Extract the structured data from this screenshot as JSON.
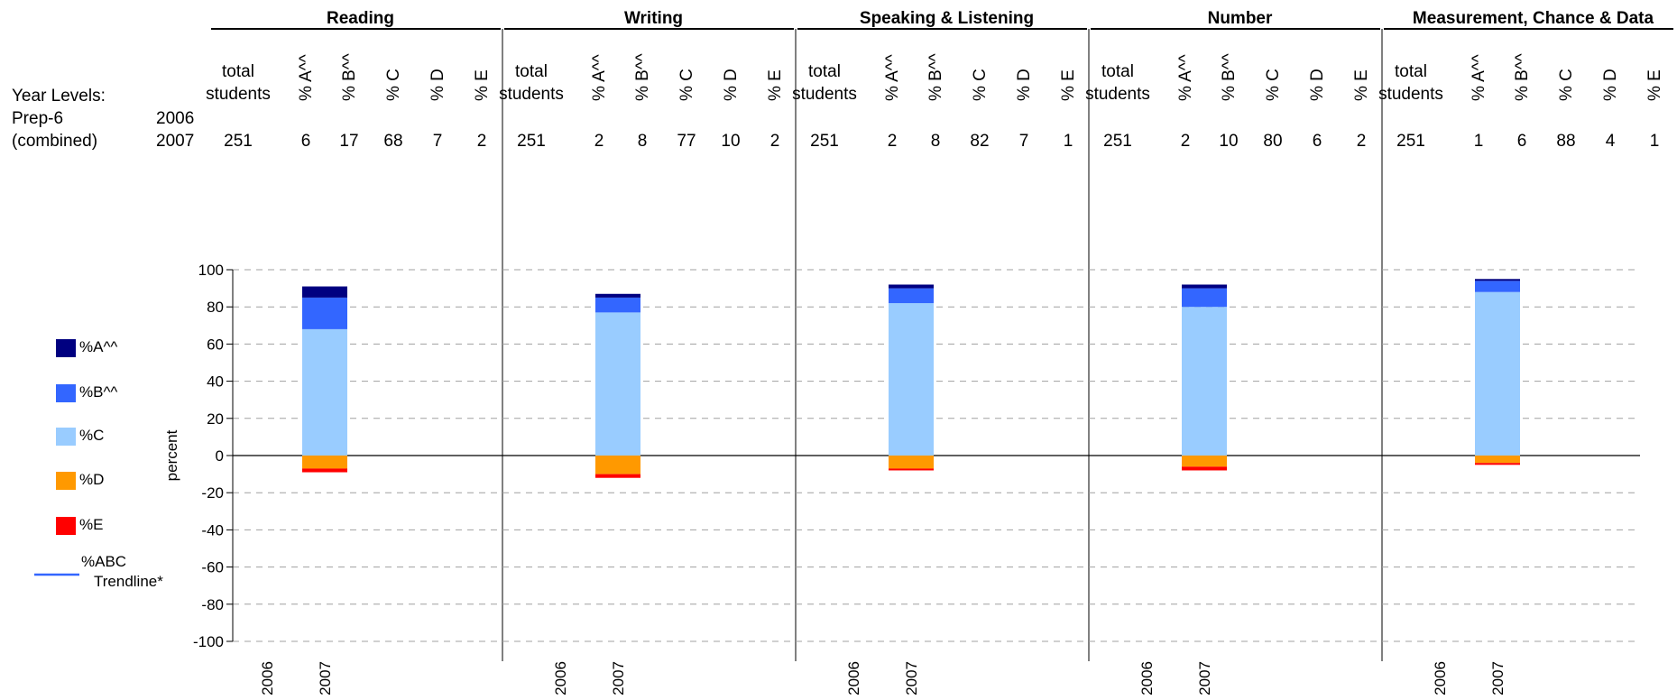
{
  "table": {
    "year_levels_label": "Year Levels:",
    "row_label_line1": "Prep-6",
    "row_label_line2": "(combined)",
    "years": [
      "2006",
      "2007"
    ],
    "columns": [
      {
        "line1": "total",
        "line2": "students"
      },
      {
        "line1": "% A^^",
        "line2": ""
      },
      {
        "line1": "% B^^",
        "line2": ""
      },
      {
        "line1": "% C",
        "line2": ""
      },
      {
        "line1": "% D",
        "line2": ""
      },
      {
        "line1": "% E",
        "line2": ""
      }
    ]
  },
  "legend": {
    "items": [
      {
        "label": "%A^^",
        "color": "#000080",
        "kind": "box"
      },
      {
        "label": "%B^^",
        "color": "#3366FF",
        "kind": "box"
      },
      {
        "label": "%C",
        "color": "#99CCFF",
        "kind": "box"
      },
      {
        "label": "%D",
        "color": "#FF9900",
        "kind": "box"
      },
      {
        "label": "%E",
        "color": "#FF0000",
        "kind": "box"
      },
      {
        "label": "%ABC",
        "label2": "Trendline*",
        "color": "#3366FF",
        "kind": "line"
      }
    ]
  },
  "chart_data": {
    "type": "bar",
    "stacked": true,
    "ylabel": "percent",
    "ylim": [
      -100,
      100
    ],
    "yticks": [
      100,
      80,
      60,
      40,
      20,
      0,
      -20,
      -40,
      -60,
      -80,
      -100
    ],
    "grid": true,
    "legend_placement": "left",
    "categories": [
      "2006",
      "2007"
    ],
    "panels": [
      {
        "title": "Reading",
        "data": [
          {
            "year": "2006",
            "total": "",
            "A": null,
            "B": null,
            "C": null,
            "D": null,
            "E": null
          },
          {
            "year": "2007",
            "total": "251",
            "A": 6,
            "B": 17,
            "C": 68,
            "D": 7,
            "E": 2
          }
        ]
      },
      {
        "title": "Writing",
        "data": [
          {
            "year": "2006",
            "total": "",
            "A": null,
            "B": null,
            "C": null,
            "D": null,
            "E": null
          },
          {
            "year": "2007",
            "total": "251",
            "A": 2,
            "B": 8,
            "C": 77,
            "D": 10,
            "E": 2
          }
        ]
      },
      {
        "title": "Speaking & Listening",
        "data": [
          {
            "year": "2006",
            "total": "",
            "A": null,
            "B": null,
            "C": null,
            "D": null,
            "E": null
          },
          {
            "year": "2007",
            "total": "251",
            "A": 2,
            "B": 8,
            "C": 82,
            "D": 7,
            "E": 1
          }
        ]
      },
      {
        "title": "Number",
        "data": [
          {
            "year": "2006",
            "total": "",
            "A": null,
            "B": null,
            "C": null,
            "D": null,
            "E": null
          },
          {
            "year": "2007",
            "total": "251",
            "A": 2,
            "B": 10,
            "C": 80,
            "D": 6,
            "E": 2
          }
        ]
      },
      {
        "title": "Measurement, Chance & Data",
        "data": [
          {
            "year": "2006",
            "total": "",
            "A": null,
            "B": null,
            "C": null,
            "D": null,
            "E": null
          },
          {
            "year": "2007",
            "total": "251",
            "A": 1,
            "B": 6,
            "C": 88,
            "D": 4,
            "E": 1
          }
        ]
      }
    ],
    "series_colors": {
      "A": "#000080",
      "B": "#3366FF",
      "C": "#99CCFF",
      "D": "#FF9900",
      "E": "#FF0000"
    }
  }
}
